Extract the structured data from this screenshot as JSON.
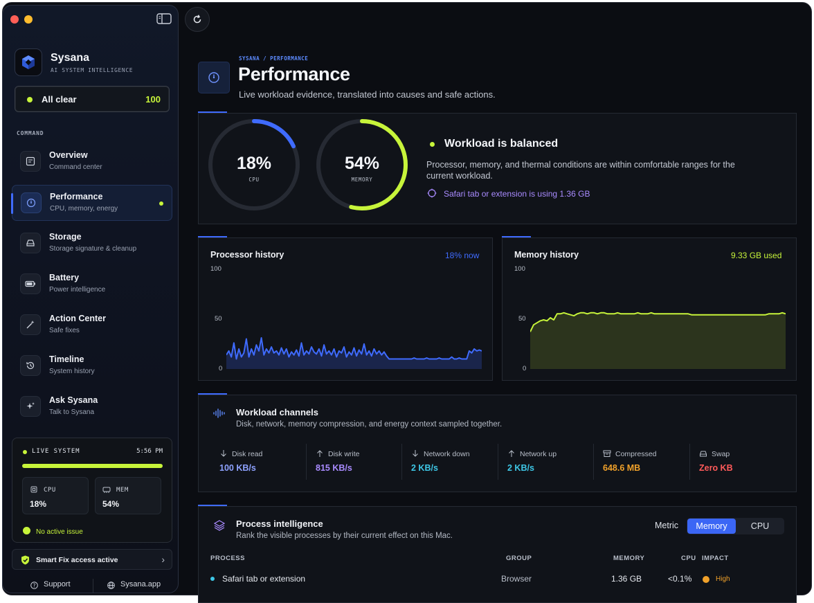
{
  "app": {
    "name": "Sysana",
    "tagline": "AI SYSTEM INTELLIGENCE"
  },
  "status": {
    "label": "All clear",
    "score": "100"
  },
  "sidebar": {
    "section_title": "COMMAND",
    "items": [
      {
        "label": "Overview",
        "sub": "Command center",
        "icon": "overview-icon"
      },
      {
        "label": "Performance",
        "sub": "CPU, memory, energy",
        "icon": "gauge-icon",
        "active": true
      },
      {
        "label": "Storage",
        "sub": "Storage signature & cleanup",
        "icon": "disk-icon"
      },
      {
        "label": "Battery",
        "sub": "Power intelligence",
        "icon": "battery-icon"
      },
      {
        "label": "Action Center",
        "sub": "Safe fixes",
        "icon": "wand-icon"
      },
      {
        "label": "Timeline",
        "sub": "System history",
        "icon": "history-icon"
      },
      {
        "label": "Ask Sysana",
        "sub": "Talk to Sysana",
        "icon": "sparkle-icon"
      }
    ]
  },
  "live": {
    "title": "LIVE SYSTEM",
    "time": "5:56 PM",
    "cpu_label": "CPU",
    "cpu_value": "18%",
    "mem_label": "MEM",
    "mem_value": "54%",
    "issue": "No active issue"
  },
  "smartfix": {
    "label": "Smart Fix access active"
  },
  "footer": {
    "support": "Support",
    "site": "Sysana.app"
  },
  "header": {
    "breadcrumb": "SYSANA  /  PERFORMANCE",
    "title": "Performance",
    "subtitle": "Live workload evidence, translated into causes and safe actions."
  },
  "summary": {
    "cpu_value": "18%",
    "cpu_caption": "CPU",
    "cpu_fraction": 0.18,
    "mem_value": "54%",
    "mem_caption": "MEMORY",
    "mem_fraction": 0.54,
    "status_title": "Workload is balanced",
    "status_desc": "Processor, memory, and thermal conditions are within comfortable ranges for the current workload.",
    "note": "Safari tab or extension is using 1.36 GB"
  },
  "colors": {
    "accent_blue": "#3f6bff",
    "accent_lime": "#c7f43a",
    "violet": "#a98bff",
    "cyan": "#3ec7e6",
    "orange": "#f0a12a",
    "red": "#ff5a5a"
  },
  "chart_data": [
    {
      "type": "area",
      "title": "Processor history",
      "right_label": "18% now",
      "yticks": [
        "100",
        "50",
        "0"
      ],
      "ylim": [
        0,
        100
      ],
      "values": [
        14,
        18,
        12,
        26,
        10,
        20,
        12,
        16,
        30,
        12,
        20,
        14,
        24,
        18,
        31,
        14,
        20,
        16,
        22,
        16,
        18,
        14,
        21,
        15,
        20,
        12,
        17,
        14,
        19,
        13,
        26,
        14,
        18,
        15,
        22,
        17,
        15,
        20,
        13,
        24,
        15,
        18,
        14,
        20,
        12,
        18,
        16,
        22,
        12,
        17,
        14,
        21,
        13,
        19,
        15,
        25,
        14,
        18,
        13,
        20,
        15,
        18,
        14,
        17,
        13,
        10,
        10,
        10,
        10,
        10,
        10,
        10,
        10,
        10,
        10,
        11,
        10,
        10,
        10,
        10,
        11,
        10,
        10,
        10,
        10,
        11,
        10,
        10,
        10,
        10,
        12,
        10,
        10,
        11,
        10,
        10,
        10,
        18,
        16,
        20,
        18,
        19,
        18
      ]
    },
    {
      "type": "area",
      "title": "Memory history",
      "right_label": "9.33 GB used",
      "yticks": [
        "100",
        "50",
        "0"
      ],
      "ylim": [
        0,
        100
      ],
      "values": [
        37,
        44,
        46,
        48,
        49,
        48,
        51,
        49,
        55,
        55,
        56,
        55,
        54,
        53,
        55,
        56,
        56,
        55,
        56,
        56,
        55,
        56,
        56,
        55,
        55,
        55,
        56,
        55,
        55,
        55,
        55,
        55,
        56,
        55,
        55,
        55,
        56,
        55,
        55,
        55,
        55,
        55,
        55,
        55,
        55,
        55,
        55,
        55,
        54,
        54,
        54,
        54,
        54,
        54,
        54,
        54,
        54,
        54,
        54,
        54,
        54,
        54,
        54,
        54,
        54,
        54,
        54,
        54,
        54,
        54,
        54,
        55,
        55,
        55,
        55,
        56,
        55
      ]
    }
  ],
  "channels": {
    "title": "Workload channels",
    "subtitle": "Disk, network, memory compression, and energy context sampled together.",
    "items": [
      {
        "label": "Disk read",
        "value": "100 KB/s",
        "color": "#8ea2ff",
        "icon": "arrow-down-icon"
      },
      {
        "label": "Disk write",
        "value": "815 KB/s",
        "color": "#a98bff",
        "icon": "arrow-up-icon"
      },
      {
        "label": "Network down",
        "value": "2 KB/s",
        "color": "#3ec7e6",
        "icon": "arrow-down-icon"
      },
      {
        "label": "Network up",
        "value": "2 KB/s",
        "color": "#3ec7e6",
        "icon": "arrow-up-icon"
      },
      {
        "label": "Compressed",
        "value": "648.6 MB",
        "color": "#f0a12a",
        "icon": "archive-icon"
      },
      {
        "label": "Swap",
        "value": "Zero KB",
        "color": "#ff5a5a",
        "icon": "drive-icon"
      }
    ]
  },
  "processes": {
    "title": "Process intelligence",
    "subtitle": "Rank the visible processes by their current effect on this Mac.",
    "metric_label": "Metric",
    "metric_options": [
      "Memory",
      "CPU"
    ],
    "metric_selected": "Memory",
    "columns": [
      "PROCESS",
      "GROUP",
      "MEMORY",
      "CPU",
      "IMPACT"
    ],
    "rows": [
      {
        "process": "Safari tab or extension",
        "group": "Browser",
        "memory": "1.36 GB",
        "cpu": "<0.1%",
        "impact": "High"
      }
    ]
  }
}
